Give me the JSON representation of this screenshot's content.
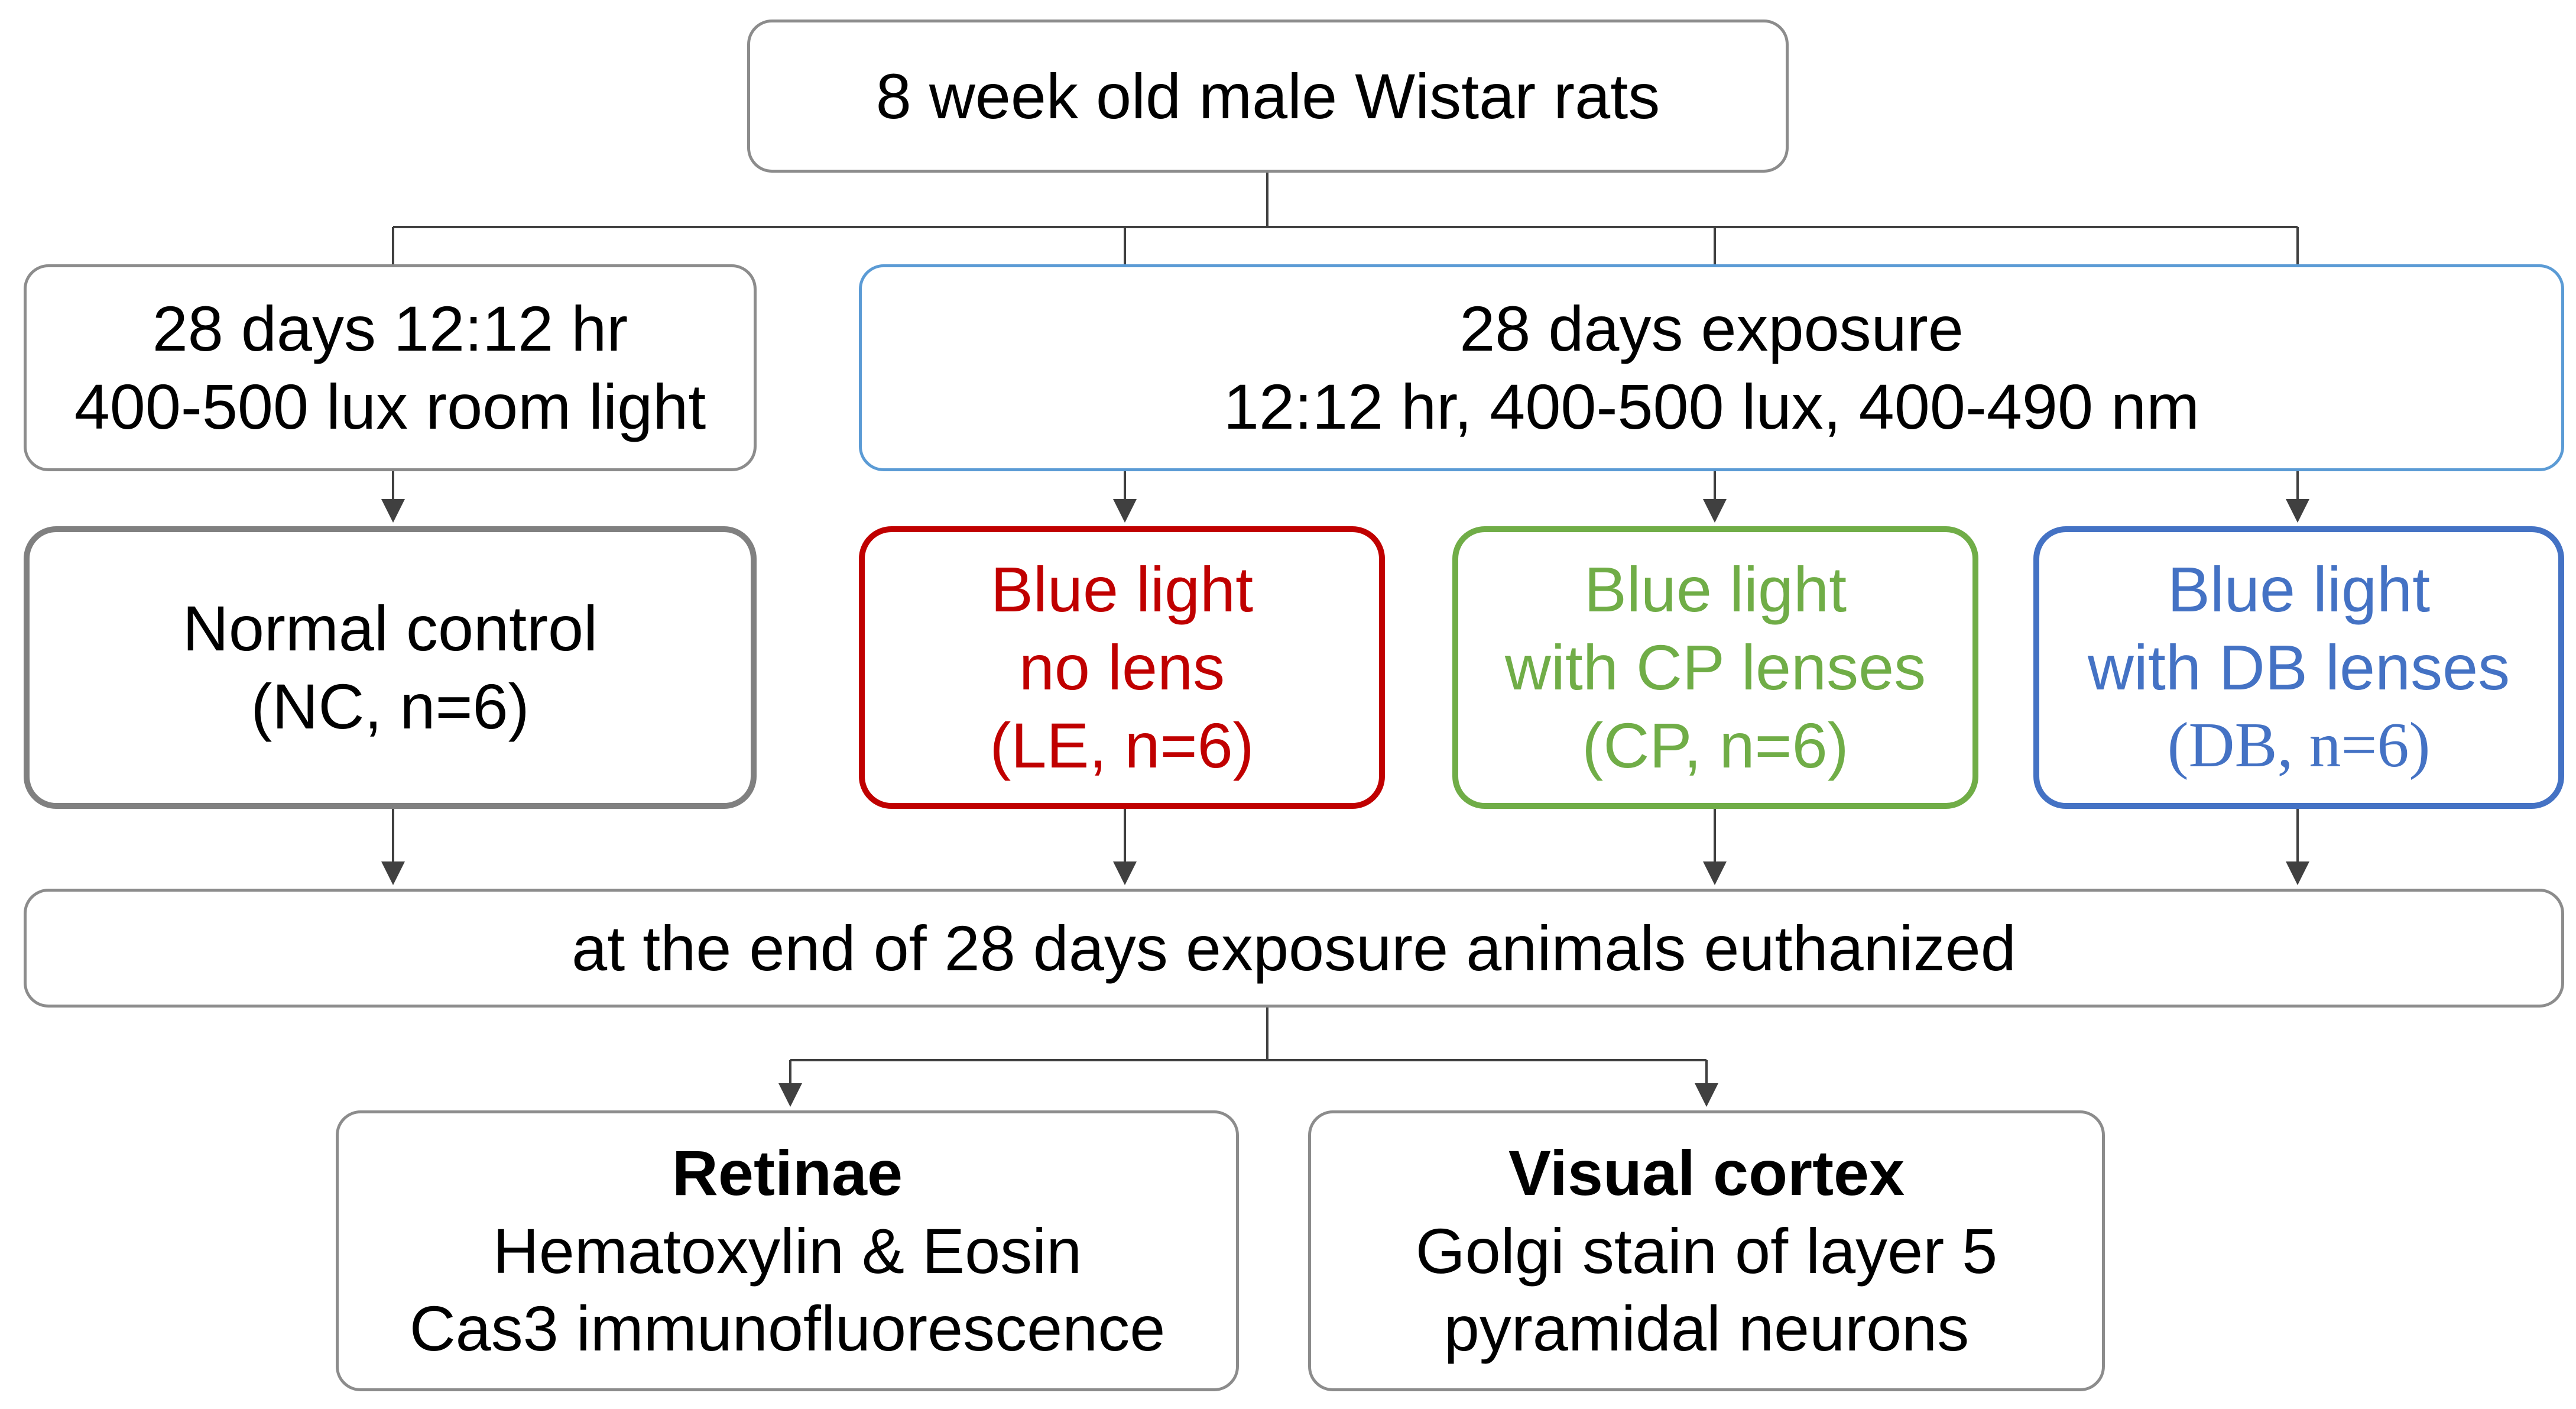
{
  "root": {
    "text": "8 week old male Wistar rats"
  },
  "control_condition": {
    "line1": "28 days 12:12 hr",
    "line2": "400-500 lux room light"
  },
  "exposure_condition": {
    "line1": "28 days exposure",
    "line2": "12:12 hr, 400-500 lux, 400-490 nm"
  },
  "groups": [
    {
      "line1": "Normal control",
      "line2": "(NC, n=6)",
      "color": "#808080"
    },
    {
      "line1": "Blue light",
      "line2": "no lens",
      "line3": "(LE, n=6)",
      "color": "#c00000"
    },
    {
      "line1": "Blue light",
      "line2": "with CP lenses",
      "line3": "(CP, n=6)",
      "color": "#70ad47"
    },
    {
      "line1": "Blue light",
      "line2": "with DB lenses",
      "line3": "(DB, n=6)",
      "color": "#4472c4"
    }
  ],
  "endpoint": {
    "text": "at the end of 28 days exposure animals euthanized"
  },
  "analyses": [
    {
      "title": "Retinae",
      "line1": "Hematoxylin & Eosin",
      "line2": "Cas3 immunofluorescence"
    },
    {
      "title": "Visual cortex",
      "line1": "Golgi stain of layer 5",
      "line2": "pyramidal neurons"
    }
  ],
  "colors": {
    "connector": "#404040",
    "box_border": "#8c8c8c",
    "exposure_border": "#5b9bd5"
  }
}
